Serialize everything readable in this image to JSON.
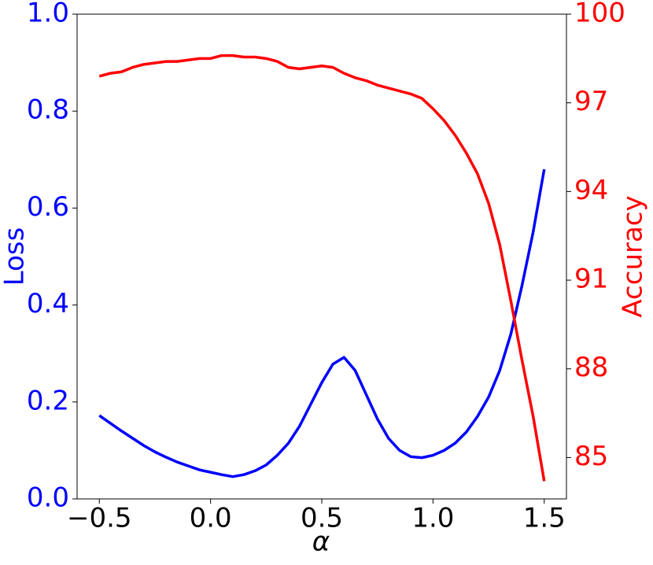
{
  "chart_data": {
    "type": "line",
    "x_label": "α",
    "y_label": "Loss",
    "y2_label": "Accuracy",
    "x": [
      -0.5,
      -0.45,
      -0.4,
      -0.35,
      -0.3,
      -0.25,
      -0.2,
      -0.15,
      -0.1,
      -0.05,
      0,
      0.05,
      0.1,
      0.15,
      0.2,
      0.25,
      0.3,
      0.35,
      0.4,
      0.45,
      0.5,
      0.55,
      0.6,
      0.65,
      0.7,
      0.75,
      0.8,
      0.85,
      0.9,
      0.95,
      1.0,
      1.05,
      1.1,
      1.15,
      1.2,
      1.25,
      1.3,
      1.35,
      1.4,
      1.45,
      1.5
    ],
    "series": [
      {
        "name": "Loss",
        "color": "#0000ff",
        "values": [
          0.172,
          0.156,
          0.14,
          0.125,
          0.11,
          0.097,
          0.086,
          0.076,
          0.068,
          0.06,
          0.055,
          0.05,
          0.046,
          0.05,
          0.058,
          0.07,
          0.09,
          0.115,
          0.15,
          0.195,
          0.24,
          0.278,
          0.292,
          0.265,
          0.215,
          0.165,
          0.125,
          0.1,
          0.087,
          0.085,
          0.09,
          0.1,
          0.115,
          0.138,
          0.17,
          0.21,
          0.265,
          0.34,
          0.44,
          0.55,
          0.68
        ]
      },
      {
        "name": "Accuracy",
        "color": "#ff0000",
        "axis": "y2",
        "values": [
          97.9,
          98.0,
          98.05,
          98.2,
          98.3,
          98.35,
          98.4,
          98.4,
          98.45,
          98.5,
          98.5,
          98.6,
          98.6,
          98.55,
          98.55,
          98.5,
          98.4,
          98.2,
          98.15,
          98.2,
          98.25,
          98.2,
          98.0,
          97.85,
          97.75,
          97.6,
          97.5,
          97.4,
          97.3,
          97.15,
          96.8,
          96.4,
          95.9,
          95.3,
          94.6,
          93.6,
          92.2,
          90.3,
          88.3,
          86.4,
          84.2
        ]
      }
    ],
    "xlim": [
      -0.6,
      1.6
    ],
    "xticks": [
      {
        "value": -0.5,
        "label": "−0.5"
      },
      {
        "value": 0,
        "label": "0.0"
      },
      0.5,
      {
        "value": 1,
        "label": "1.0"
      },
      1.5
    ],
    "ylim": [
      0,
      1
    ],
    "yticks": [
      {
        "value": 0,
        "label": "0.0"
      },
      0.2,
      0.4,
      0.6,
      0.8,
      {
        "value": 1,
        "label": "1.0"
      }
    ],
    "y2lim": [
      83.6,
      100
    ],
    "y2ticks": [
      85,
      88,
      91,
      94,
      97,
      100
    ]
  }
}
